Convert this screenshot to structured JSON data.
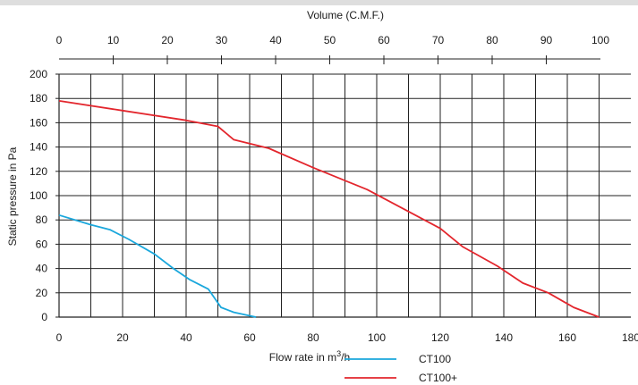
{
  "chart_data": {
    "type": "line",
    "xlabel": "Flow rate in m³/h",
    "ylabel": "Static pressure in Pa",
    "top_axis_label": "Volume (C.M.F.)",
    "xlim": [
      0,
      180
    ],
    "ylim": [
      0,
      200
    ],
    "top_xlim": [
      0,
      100
    ],
    "x_ticks": [
      0,
      20,
      40,
      60,
      80,
      100,
      120,
      140,
      160,
      180
    ],
    "y_ticks": [
      0,
      20,
      40,
      60,
      80,
      100,
      120,
      140,
      160,
      180,
      200
    ],
    "top_ticks": [
      0,
      10,
      20,
      30,
      40,
      50,
      60,
      70,
      80,
      90,
      100
    ],
    "grid": true,
    "legend_position": "bottom-right",
    "series": [
      {
        "name": "CT100",
        "color": "#1aa7dc",
        "x": [
          0,
          10,
          16,
          22,
          30,
          36,
          41,
          47,
          51,
          55,
          62
        ],
        "y": [
          84,
          76,
          72,
          64,
          52,
          40,
          31,
          23,
          8,
          4,
          0
        ]
      },
      {
        "name": "CT100+",
        "color": "#e3262d",
        "x": [
          0,
          20,
          40,
          50,
          55,
          66,
          80,
          97,
          120,
          127,
          138,
          146,
          154,
          162,
          170
        ],
        "y": [
          178,
          170,
          162,
          157,
          146,
          139,
          123,
          105,
          73,
          58,
          42,
          28,
          20,
          8,
          0
        ]
      }
    ]
  }
}
